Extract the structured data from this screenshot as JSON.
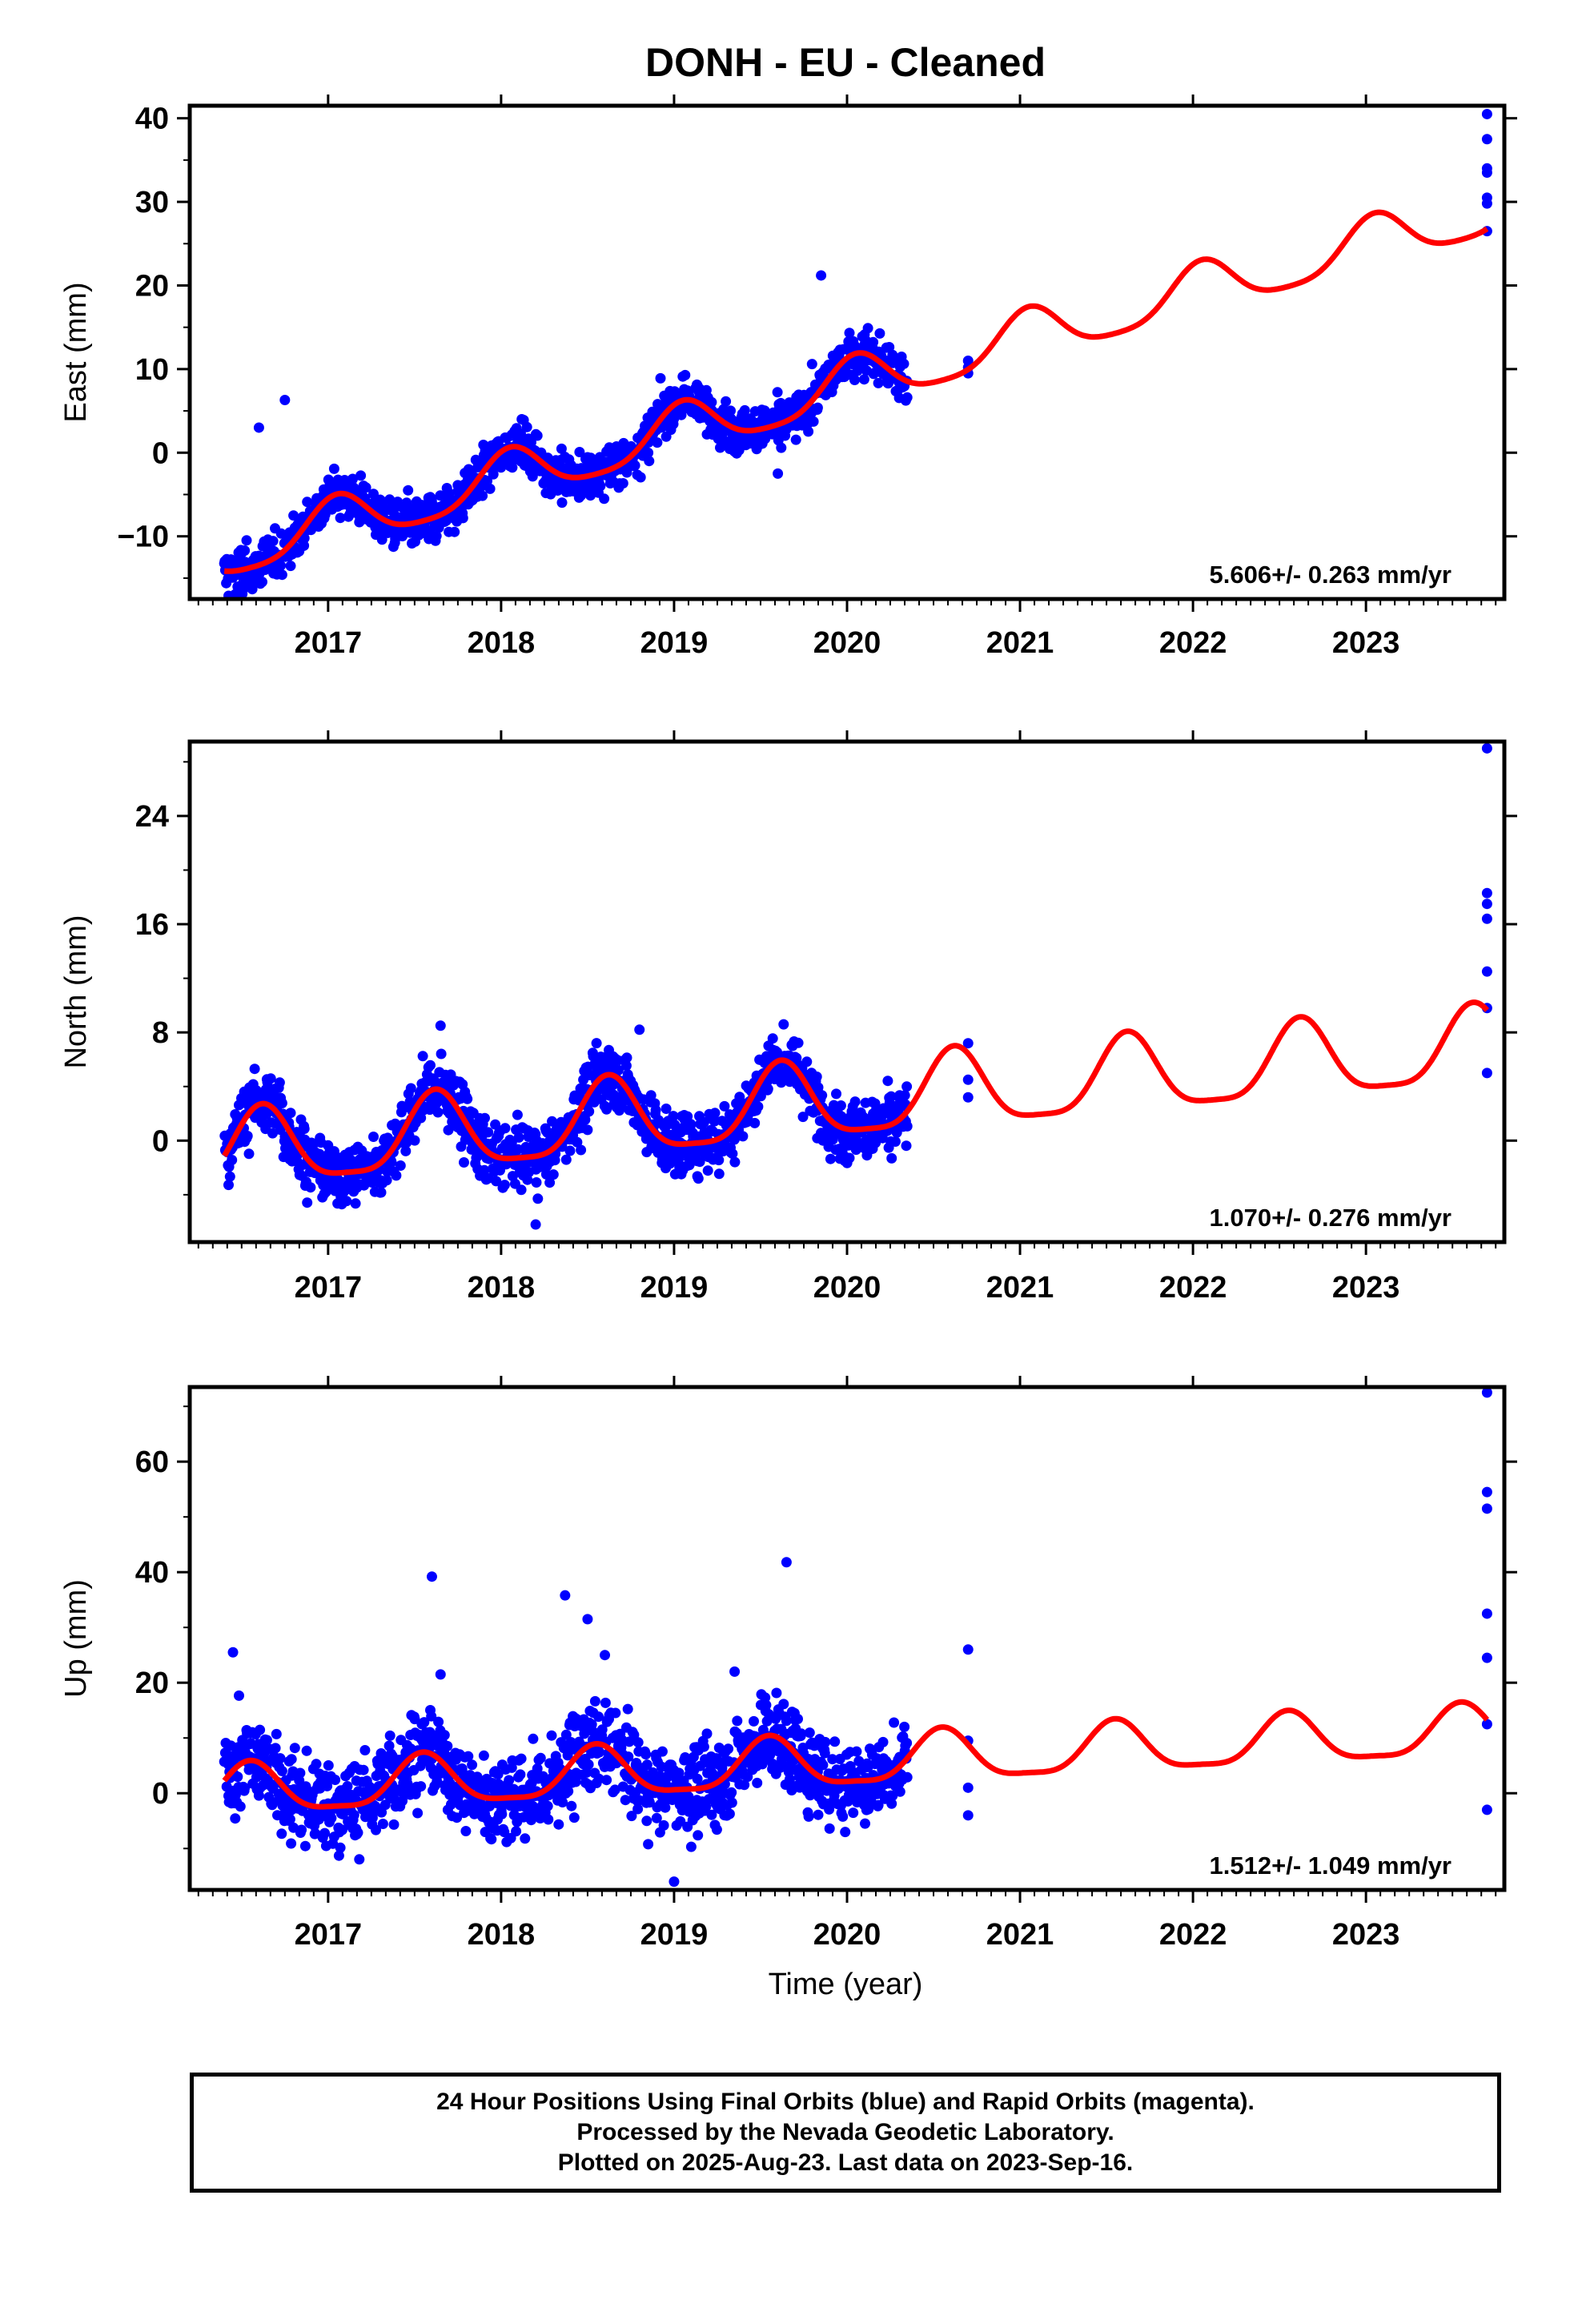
{
  "title": "DONH  - EU - Cleaned",
  "xlabel": "Time (year)",
  "footer": {
    "line1": "24 Hour Positions Using Final Orbits (blue) and Rapid Orbits (magenta).",
    "line2": "Processed by the Nevada Geodetic Laboratory.",
    "line3": "Plotted on 2025-Aug-23. Last data on 2023-Sep-16."
  },
  "colors": {
    "data": "#0000ff",
    "model": "#ff0000",
    "frame": "#000000"
  },
  "chart_data": [
    {
      "type": "scatter",
      "component": "east",
      "ylabel": "East (mm)",
      "rate_text": "5.606+/- 0.263 mm/yr",
      "xlim": [
        2016.2,
        2023.8
      ],
      "ylim": [
        -17.5,
        41.5
      ],
      "xticks": [
        2017,
        2018,
        2019,
        2020,
        2021,
        2022,
        2023
      ],
      "yticks": [
        -10,
        0,
        10,
        20,
        30,
        40
      ],
      "yticklabels": [
        "−10",
        "0",
        "10",
        "20",
        "30",
        "40"
      ],
      "model": {
        "offset": -12.2,
        "rate": 5.606,
        "epoch": 2016.4,
        "annual_amp": 3.0,
        "annual_phase_peak": 2017.05,
        "semi_amp": 0.6
      },
      "data_span": [
        2016.4,
        2020.35
      ],
      "scatter_sd": 1.4,
      "isolated_points": [
        {
          "x": 2020.7,
          "y": 11.0
        },
        {
          "x": 2020.7,
          "y": 9.5
        },
        {
          "x": 2020.7,
          "y": 10.2
        },
        {
          "x": 2023.7,
          "y": 40.5
        },
        {
          "x": 2023.7,
          "y": 37.5
        },
        {
          "x": 2023.7,
          "y": 34.0
        },
        {
          "x": 2023.7,
          "y": 33.5
        },
        {
          "x": 2023.7,
          "y": 30.5
        },
        {
          "x": 2023.7,
          "y": 29.8
        },
        {
          "x": 2023.7,
          "y": 26.5
        },
        {
          "x": 2016.6,
          "y": 3.0
        },
        {
          "x": 2016.75,
          "y": 6.3
        },
        {
          "x": 2019.85,
          "y": 21.2
        },
        {
          "x": 2019.6,
          "y": -2.5
        }
      ]
    },
    {
      "type": "scatter",
      "component": "north",
      "ylabel": "North (mm)",
      "rate_text": "1.070+/- 0.276 mm/yr",
      "xlim": [
        2016.2,
        2023.8
      ],
      "ylim": [
        -7.5,
        29.5
      ],
      "xticks": [
        2017,
        2018,
        2019,
        2020,
        2021,
        2022,
        2023
      ],
      "yticks": [
        0,
        8,
        16,
        24
      ],
      "yticklabels": [
        "0",
        "8",
        "16",
        "24"
      ],
      "model": {
        "offset": -1.0,
        "rate": 1.07,
        "epoch": 2016.4,
        "annual_amp": 2.8,
        "annual_phase_peak": 2016.62,
        "semi_amp": 0.7
      },
      "data_span": [
        2016.4,
        2020.35
      ],
      "scatter_sd": 1.2,
      "isolated_points": [
        {
          "x": 2020.7,
          "y": 7.2
        },
        {
          "x": 2020.7,
          "y": 4.5
        },
        {
          "x": 2020.7,
          "y": 3.2
        },
        {
          "x": 2023.7,
          "y": 29.0
        },
        {
          "x": 2023.7,
          "y": 18.3
        },
        {
          "x": 2023.7,
          "y": 17.5
        },
        {
          "x": 2023.7,
          "y": 16.4
        },
        {
          "x": 2023.7,
          "y": 12.5
        },
        {
          "x": 2023.7,
          "y": 9.8
        },
        {
          "x": 2023.7,
          "y": 5.0
        },
        {
          "x": 2017.65,
          "y": 8.5
        },
        {
          "x": 2018.8,
          "y": 8.2
        },
        {
          "x": 2018.2,
          "y": -6.2
        }
      ]
    },
    {
      "type": "scatter",
      "component": "up",
      "ylabel": "Up (mm)",
      "rate_text": "1.512+/- 1.049 mm/yr",
      "xlim": [
        2016.2,
        2023.8
      ],
      "ylim": [
        -17.5,
        73.5
      ],
      "xticks": [
        2017,
        2018,
        2019,
        2020,
        2021,
        2022,
        2023
      ],
      "yticks": [
        0,
        20,
        40,
        60
      ],
      "yticklabels": [
        "0",
        "20",
        "40",
        "60"
      ],
      "model": {
        "offset": 0.0,
        "rate": 1.512,
        "epoch": 2016.4,
        "annual_amp": 4.5,
        "annual_phase_peak": 2016.55,
        "semi_amp": 1.2
      },
      "data_span": [
        2016.4,
        2020.35
      ],
      "scatter_sd": 4.0,
      "isolated_points": [
        {
          "x": 2020.7,
          "y": 26.0
        },
        {
          "x": 2020.7,
          "y": 9.5
        },
        {
          "x": 2020.7,
          "y": 1.0
        },
        {
          "x": 2020.7,
          "y": -4.0
        },
        {
          "x": 2023.7,
          "y": 72.5
        },
        {
          "x": 2023.7,
          "y": 54.5
        },
        {
          "x": 2023.7,
          "y": 51.5
        },
        {
          "x": 2023.7,
          "y": 32.5
        },
        {
          "x": 2023.7,
          "y": 24.5
        },
        {
          "x": 2023.7,
          "y": 12.5
        },
        {
          "x": 2023.7,
          "y": -3.0
        },
        {
          "x": 2017.6,
          "y": 39.2
        },
        {
          "x": 2018.37,
          "y": 35.8
        },
        {
          "x": 2018.5,
          "y": 31.5
        },
        {
          "x": 2019.65,
          "y": 41.8
        },
        {
          "x": 2016.45,
          "y": 25.5
        },
        {
          "x": 2017.65,
          "y": 21.5
        },
        {
          "x": 2019.35,
          "y": 22.0
        },
        {
          "x": 2018.6,
          "y": 25.0
        },
        {
          "x": 2019.0,
          "y": -16.0
        }
      ]
    }
  ]
}
